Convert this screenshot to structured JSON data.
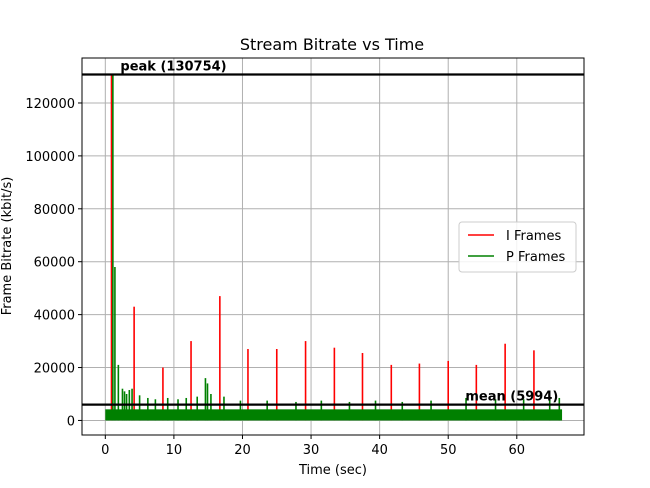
{
  "chart_data": {
    "type": "bar",
    "title": "Stream Bitrate vs Time",
    "xlabel": "Time (sec)",
    "ylabel": "Frame Bitrate (kbit/s)",
    "xlim": [
      -3.4,
      69.8
    ],
    "ylim": [
      -5500,
      137000
    ],
    "xticks": [
      0,
      10,
      20,
      30,
      40,
      50,
      60
    ],
    "yticks": [
      0,
      20000,
      40000,
      60000,
      80000,
      100000,
      120000
    ],
    "grid": true,
    "legend_position": "center-right",
    "series": [
      {
        "name": "I Frames",
        "color": "#ff0000",
        "x": [
          0.9,
          4.2,
          8.4,
          12.5,
          16.7,
          20.8,
          25.0,
          29.2,
          33.4,
          37.5,
          41.7,
          45.8,
          50.0,
          54.1,
          58.3,
          62.5
        ],
        "values": [
          130754,
          43000,
          20000,
          30000,
          47000,
          27000,
          27000,
          30000,
          27500,
          25500,
          21000,
          21500,
          22500,
          21000,
          29000,
          26500
        ]
      },
      {
        "name": "P Frames",
        "color": "#008000",
        "x": [
          1.1,
          1.4,
          1.9,
          2.5,
          2.8,
          3.1,
          3.5,
          3.9,
          5.0,
          6.2,
          7.3,
          9.1,
          10.6,
          11.8,
          13.4,
          14.6,
          14.9,
          15.4,
          17.3,
          19.7,
          23.6,
          27.8,
          31.5,
          35.6,
          39.4,
          43.3,
          47.5,
          52.6,
          56.9,
          61.0,
          64.8,
          66.2
        ],
        "values": [
          130754,
          58000,
          21000,
          12000,
          11000,
          10000,
          11500,
          12000,
          9500,
          8500,
          8000,
          8500,
          8000,
          8500,
          9000,
          16000,
          14000,
          10000,
          9000,
          7500,
          7500,
          7000,
          7500,
          7000,
          7500,
          7000,
          7500,
          8500,
          8000,
          8000,
          9000,
          8500
        ],
        "baseline_fill": {
          "x_start": 0.0,
          "x_end": 66.6,
          "level": 4200
        }
      }
    ],
    "hlines": [
      {
        "name": "peak",
        "value": 130754,
        "label": "peak (130754)",
        "label_x": 2.2
      },
      {
        "name": "mean",
        "value": 5994,
        "label": "mean (5994)",
        "label_x": 52.5
      }
    ],
    "legend": [
      "I Frames",
      "P Frames"
    ]
  }
}
